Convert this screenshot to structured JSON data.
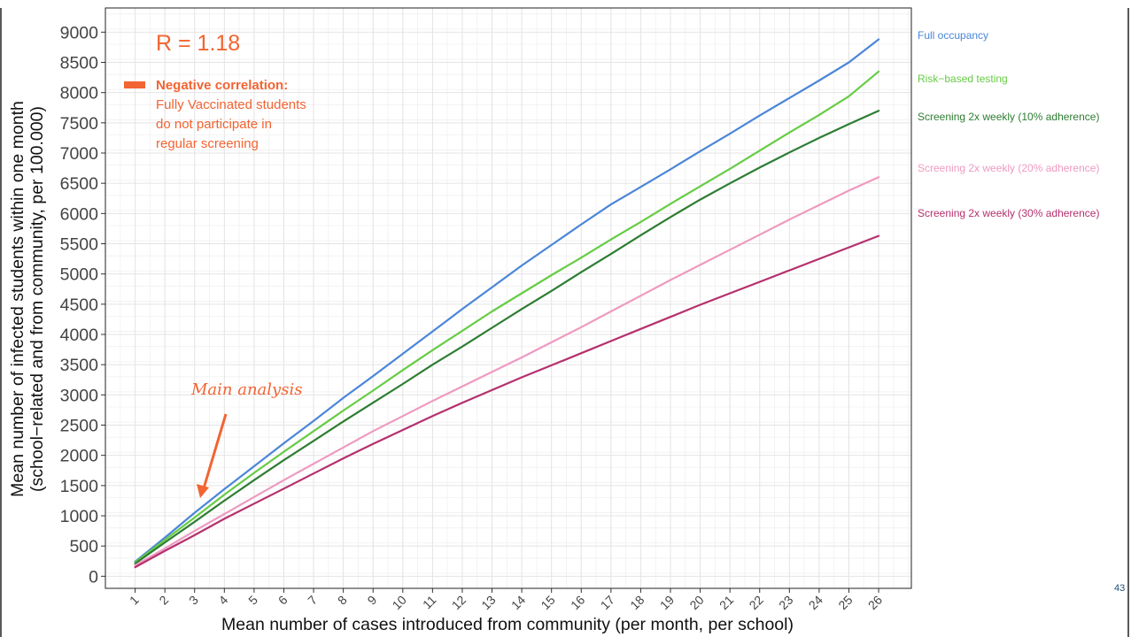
{
  "slide": {
    "page_number": "43"
  },
  "chart_data": {
    "type": "line",
    "xlabel": "Mean number of cases introduced from community (per month, per school)",
    "ylabel_line1": "Mean number of infected students within one month",
    "ylabel_line2": "(school−related and from community, per 100.000)",
    "x": [
      1,
      2,
      3,
      4,
      5,
      6,
      7,
      8,
      9,
      10,
      11,
      12,
      13,
      14,
      15,
      16,
      17,
      18,
      19,
      20,
      21,
      22,
      23,
      24,
      25,
      26
    ],
    "xlim": [
      0,
      27.1
    ],
    "ylim": [
      -200,
      9400
    ],
    "yticks": [
      0,
      500,
      1000,
      1500,
      2000,
      2500,
      3000,
      3500,
      4000,
      4500,
      5000,
      5500,
      6000,
      6500,
      7000,
      7500,
      8000,
      8500,
      9000
    ],
    "grid": true,
    "legend_placement": "right, at line ends",
    "series": [
      {
        "name": "Full occupancy",
        "color": "#4a86d8",
        "values": [
          240,
          640,
          1050,
          1440,
          1820,
          2200,
          2570,
          2950,
          3310,
          3680,
          4050,
          4420,
          4780,
          5140,
          5480,
          5820,
          6150,
          6440,
          6730,
          7030,
          7320,
          7620,
          7910,
          8200,
          8500,
          8880
        ]
      },
      {
        "name": "Risk−based testing",
        "color": "#66cc44",
        "values": [
          230,
          600,
          970,
          1350,
          1710,
          2060,
          2400,
          2740,
          3070,
          3410,
          3740,
          4060,
          4380,
          4680,
          4980,
          5270,
          5570,
          5860,
          6160,
          6450,
          6740,
          7040,
          7340,
          7630,
          7940,
          8350
        ]
      },
      {
        "name": "Screening 2x weekly (10% adherence)",
        "color": "#2e7d32",
        "values": [
          210,
          560,
          900,
          1250,
          1590,
          1920,
          2240,
          2560,
          2870,
          3180,
          3500,
          3800,
          4110,
          4420,
          4720,
          5030,
          5330,
          5640,
          5940,
          6230,
          6500,
          6760,
          7010,
          7250,
          7480,
          7700
        ]
      },
      {
        "name": "Screening 2x weekly (20% adherence)",
        "color": "#ee9ac0",
        "values": [
          180,
          460,
          750,
          1030,
          1310,
          1590,
          1860,
          2130,
          2400,
          2650,
          2900,
          3140,
          3380,
          3620,
          3870,
          4120,
          4380,
          4640,
          4900,
          5150,
          5400,
          5650,
          5900,
          6140,
          6380,
          6600
        ]
      },
      {
        "name": "Screening 2x weekly (30% adherence)",
        "color": "#b5306e",
        "values": [
          150,
          420,
          680,
          950,
          1200,
          1450,
          1700,
          1950,
          2190,
          2420,
          2650,
          2870,
          3080,
          3290,
          3490,
          3690,
          3890,
          4090,
          4290,
          4490,
          4680,
          4870,
          5060,
          5250,
          5440,
          5630
        ]
      }
    ],
    "annotations": {
      "r_value": "R = 1.18",
      "note_heading": "Negative correlation:",
      "note_line1": "Fully Vaccinated students",
      "note_line2": "do not participate in",
      "note_line3": "regular screening",
      "main_analysis": "Main analysis",
      "accent_color": "#f26432"
    }
  }
}
